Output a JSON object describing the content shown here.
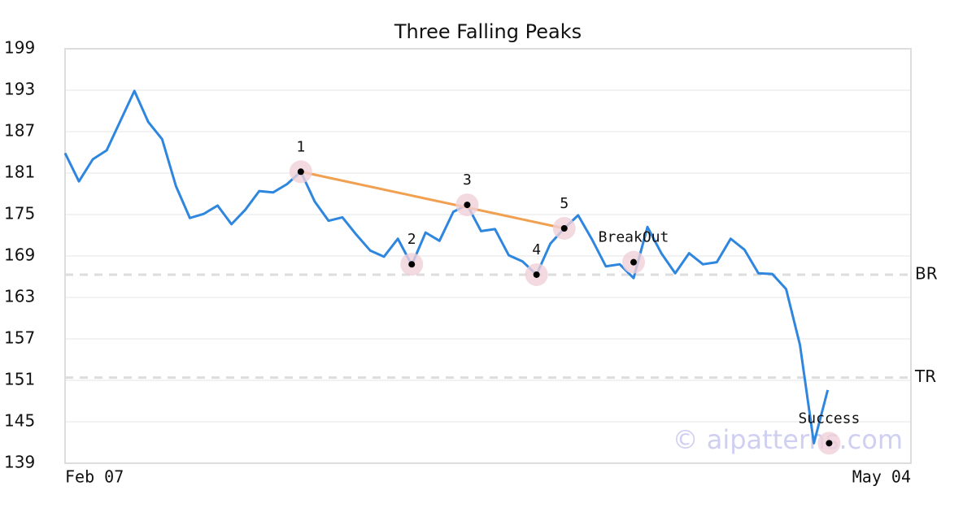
{
  "chart_data": {
    "type": "line",
    "title": "Three Falling Peaks",
    "categories": [
      "Feb 07",
      null,
      null,
      null,
      null,
      null,
      null,
      null,
      null,
      null,
      null,
      null,
      null,
      null,
      null,
      null,
      null,
      null,
      null,
      null,
      null,
      null,
      null,
      null,
      null,
      null,
      null,
      null,
      null,
      null,
      null,
      null,
      null,
      null,
      null,
      null,
      null,
      null,
      null,
      null,
      null,
      null,
      null,
      null,
      null,
      null,
      null,
      null,
      null,
      null,
      null,
      null,
      null,
      null,
      null,
      null,
      null,
      null,
      null,
      null,
      null,
      "May 04"
    ],
    "series": [
      {
        "color": "#2e86de",
        "values": [
          183.9,
          179.8,
          183.0,
          184.3,
          188.6,
          192.9,
          188.4,
          185.9,
          179.1,
          174.5,
          175.1,
          176.3,
          173.6,
          175.7,
          178.4,
          178.2,
          179.4,
          181.2,
          176.9,
          174.1,
          174.6,
          172.1,
          169.8,
          168.9,
          171.5,
          167.7,
          172.4,
          171.2,
          175.4,
          176.4,
          172.6,
          172.9,
          169.1,
          168.2,
          166.3,
          170.8,
          173.0,
          174.9,
          171.4,
          167.5,
          167.8,
          165.8,
          173.2,
          169.4,
          166.5,
          169.4,
          167.8,
          168.1,
          171.5,
          169.9,
          166.5,
          166.4,
          164.2,
          156.1,
          141.9,
          149.6,
          null,
          null,
          null,
          null,
          null,
          null
        ]
      }
    ],
    "markers": [
      {
        "label": "1",
        "index": 17,
        "value": 181.2
      },
      {
        "label": "2",
        "index": 25,
        "value": 167.8
      },
      {
        "label": "3",
        "index": 29,
        "value": 176.4
      },
      {
        "label": "4",
        "index": 34,
        "value": 166.3
      },
      {
        "label": "5",
        "index": 36,
        "value": 173.0
      },
      {
        "label": "BreakOut",
        "index": 41,
        "value": 168.1
      },
      {
        "label": "Success",
        "index": 55.1,
        "value": 141.9
      }
    ],
    "trend_color": "#f0a050",
    "levels": [
      {
        "label": "BR",
        "value": 166.3
      },
      {
        "label": "TR",
        "value": 151.4
      }
    ],
    "watermark": "© aipatterns.com",
    "ylim": [
      139,
      199
    ],
    "yticks": [
      139,
      145,
      151,
      157,
      163,
      169,
      175,
      181,
      187,
      193,
      199
    ],
    "grid": true
  }
}
